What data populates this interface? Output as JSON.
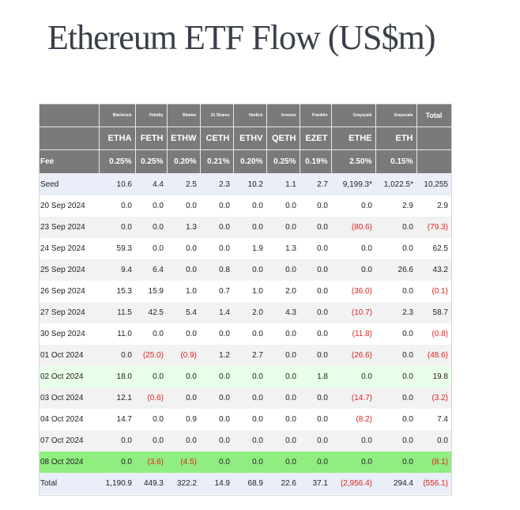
{
  "title": "Ethereum ETF Flow (US$m)",
  "issuers": [
    "Blackrock",
    "Fidelity",
    "Bitwise",
    "21 Shares",
    "VanEck",
    "Invesco",
    "Franklin",
    "Grayscale",
    "Grayscale"
  ],
  "total_label": "Total",
  "tickers": [
    "ETHA",
    "FETH",
    "ETHW",
    "CETH",
    "ETHV",
    "QETH",
    "EZET",
    "ETHE",
    "ETH"
  ],
  "fee_label": "Fee",
  "fees": [
    "0.25%",
    "0.25%",
    "0.20%",
    "0.21%",
    "0.20%",
    "0.25%",
    "0.19%",
    "2.50%",
    "0.15%"
  ],
  "rows": [
    {
      "date": "Seed",
      "style": "seed",
      "values": [
        "10.6",
        "4.4",
        "2.5",
        "2.3",
        "10.2",
        "1.1",
        "2.7",
        "9,199.3*",
        "1,022.5*",
        "10,255"
      ]
    },
    {
      "date": "20 Sep 2024",
      "style": "plain",
      "values": [
        "0.0",
        "0.0",
        "0.0",
        "0.0",
        "0.0",
        "0.0",
        "0.0",
        "0.0",
        "2.9",
        "2.9"
      ]
    },
    {
      "date": "23 Sep 2024",
      "style": "alt",
      "values": [
        "0.0",
        "0.0",
        "1.3",
        "0.0",
        "0.0",
        "0.0",
        "0.0",
        "(80.6)",
        "0.0",
        "(79.3)"
      ]
    },
    {
      "date": "24 Sep 2024",
      "style": "plain",
      "values": [
        "59.3",
        "0.0",
        "0.0",
        "0.0",
        "1.9",
        "1.3",
        "0.0",
        "0.0",
        "0.0",
        "62.5"
      ]
    },
    {
      "date": "25 Sep 2024",
      "style": "alt",
      "values": [
        "9.4",
        "6.4",
        "0.0",
        "0.8",
        "0.0",
        "0.0",
        "0.0",
        "0.0",
        "26.6",
        "43.2"
      ]
    },
    {
      "date": "26 Sep 2024",
      "style": "plain",
      "values": [
        "15.3",
        "15.9",
        "1.0",
        "0.7",
        "1.0",
        "2.0",
        "0.0",
        "(36.0)",
        "0.0",
        "(0.1)"
      ]
    },
    {
      "date": "27 Sep 2024",
      "style": "alt",
      "values": [
        "11.5",
        "42.5",
        "5.4",
        "1.4",
        "2.0",
        "4.3",
        "0.0",
        "(10.7)",
        "2.3",
        "58.7"
      ]
    },
    {
      "date": "30 Sep 2024",
      "style": "plain",
      "values": [
        "11.0",
        "0.0",
        "0.0",
        "0.0",
        "0.0",
        "0.0",
        "0.0",
        "(11.8)",
        "0.0",
        "(0.8)"
      ]
    },
    {
      "date": "01 Oct 2024",
      "style": "alt",
      "values": [
        "0.0",
        "(25.0)",
        "(0.9)",
        "1.2",
        "2.7",
        "0.0",
        "0.0",
        "(26.6)",
        "0.0",
        "(48.6)"
      ]
    },
    {
      "date": "02 Oct 2024",
      "style": "light-green",
      "values": [
        "18.0",
        "0.0",
        "0.0",
        "0.0",
        "0.0",
        "0.0",
        "1.8",
        "0.0",
        "0.0",
        "19.8"
      ]
    },
    {
      "date": "03 Oct 2024",
      "style": "alt",
      "values": [
        "12.1",
        "(0.6)",
        "0.0",
        "0.0",
        "0.0",
        "0.0",
        "0.0",
        "(14.7)",
        "0.0",
        "(3.2)"
      ]
    },
    {
      "date": "04 Oct 2024",
      "style": "plain",
      "values": [
        "14.7",
        "0.0",
        "0.9",
        "0.0",
        "0.0",
        "0.0",
        "0.0",
        "(8.2)",
        "0.0",
        "7.4"
      ]
    },
    {
      "date": "07 Oct 2024",
      "style": "alt",
      "values": [
        "0.0",
        "0.0",
        "0.0",
        "0.0",
        "0.0",
        "0.0",
        "0.0",
        "0.0",
        "0.0",
        "0.0"
      ]
    },
    {
      "date": "08 Oct 2024",
      "style": "green",
      "values": [
        "0.0",
        "(3.6)",
        "(4.5)",
        "0.0",
        "0.0",
        "0.0",
        "0.0",
        "0.0",
        "0.0",
        "(8.1)"
      ]
    }
  ],
  "total_row": {
    "date": "Total",
    "values": [
      "1,190.9",
      "449.3",
      "322.2",
      "14.9",
      "68.9",
      "22.6",
      "37.1",
      "(2,956.4)",
      "294.4",
      "(556.1)"
    ]
  },
  "colors": {
    "header_bg": "#7a7a7a",
    "negative": "#dd2222",
    "highlight_green": "#90ee80",
    "light_green": "#eaffea",
    "seed_bg": "#e9eef8"
  }
}
